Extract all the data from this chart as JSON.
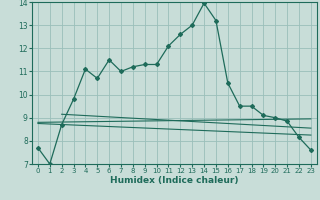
{
  "xlabel": "Humidex (Indice chaleur)",
  "background_color": "#c8ddd8",
  "grid_color": "#9abfba",
  "line_color": "#1e6b5a",
  "xlim": [
    -0.5,
    23.5
  ],
  "ylim": [
    7,
    14
  ],
  "yticks": [
    7,
    8,
    9,
    10,
    11,
    12,
    13,
    14
  ],
  "xticks": [
    0,
    1,
    2,
    3,
    4,
    5,
    6,
    7,
    8,
    9,
    10,
    11,
    12,
    13,
    14,
    15,
    16,
    17,
    18,
    19,
    20,
    21,
    22,
    23
  ],
  "main_x": [
    0,
    1,
    2,
    3,
    4,
    5,
    6,
    7,
    8,
    9,
    10,
    11,
    12,
    13,
    14,
    15,
    16,
    17,
    18,
    19,
    20,
    21,
    22,
    23
  ],
  "main_y": [
    7.7,
    7.0,
    8.7,
    9.8,
    11.1,
    10.7,
    11.5,
    11.0,
    11.2,
    11.3,
    11.3,
    12.1,
    12.6,
    13.0,
    13.95,
    13.2,
    10.5,
    9.5,
    9.5,
    9.1,
    9.0,
    8.85,
    8.15,
    7.6
  ],
  "trend1_x": [
    0,
    23
  ],
  "trend1_y": [
    8.8,
    8.95
  ],
  "trend2_x": [
    0,
    23
  ],
  "trend2_y": [
    8.75,
    8.25
  ],
  "trend3_x": [
    2,
    23
  ],
  "trend3_y": [
    9.15,
    8.55
  ]
}
